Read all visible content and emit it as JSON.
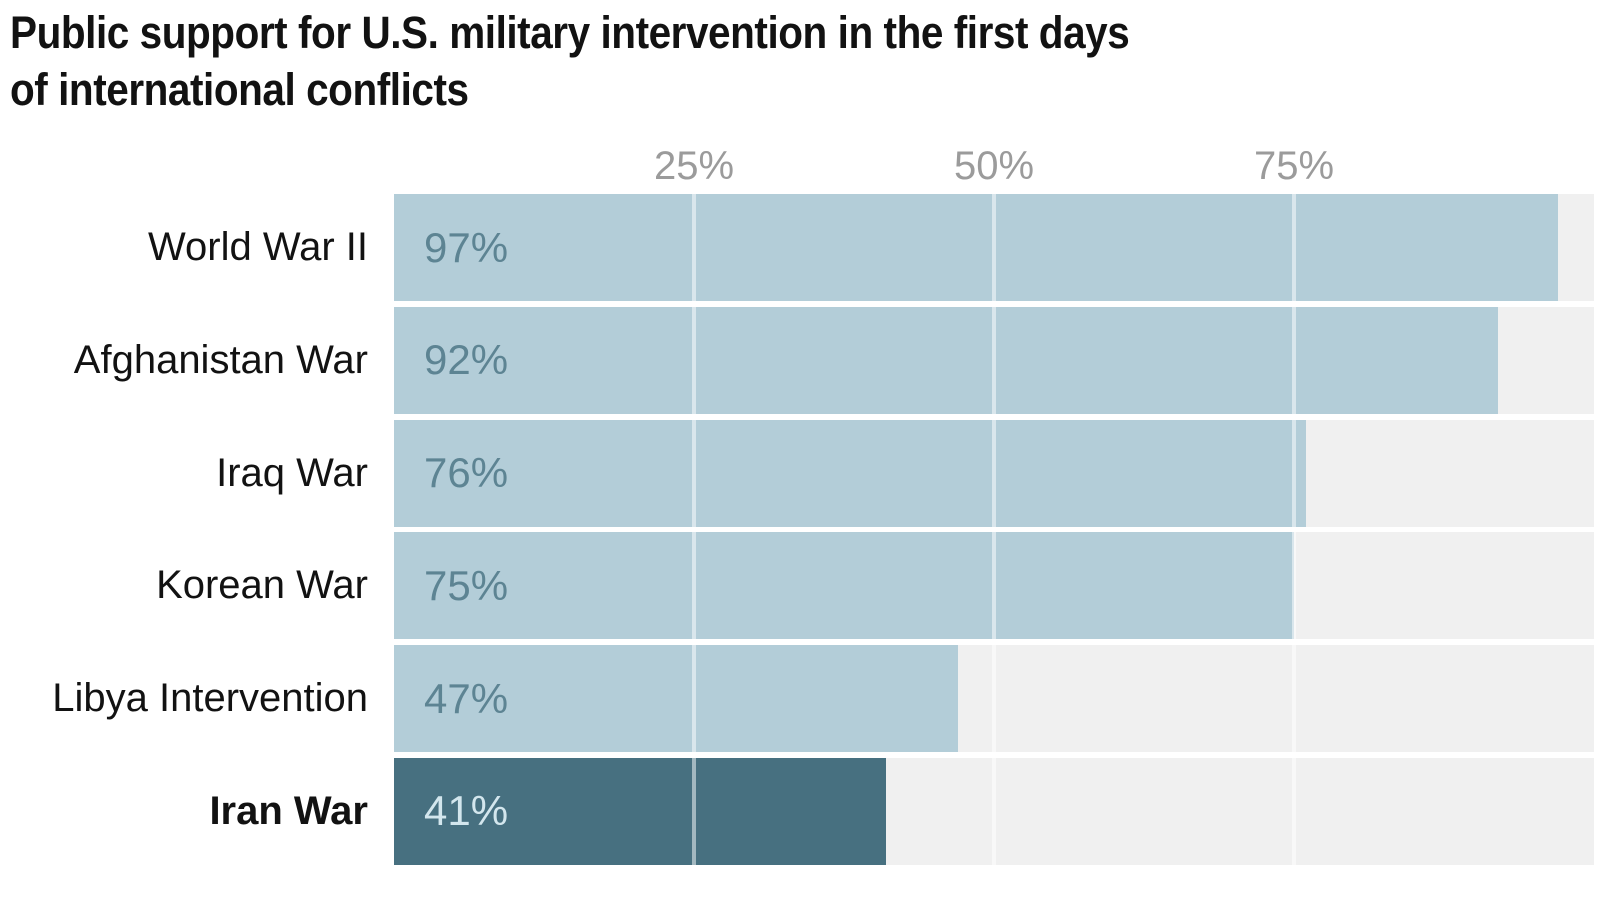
{
  "title": {
    "line1": "Public support for U.S. military intervention in the first days",
    "line2": "of international conflicts"
  },
  "axis": {
    "ticks": [
      {
        "label": "25%",
        "value": 25
      },
      {
        "label": "50%",
        "value": 50
      },
      {
        "label": "75%",
        "value": 75
      }
    ]
  },
  "chart_data": {
    "type": "bar",
    "orientation": "horizontal",
    "title": "Public support for U.S. military intervention in the first days of international conflicts",
    "categories": [
      "World War II",
      "Afghanistan War",
      "Iraq War",
      "Korean War",
      "Libya Intervention",
      "Iran War"
    ],
    "values": [
      97,
      92,
      76,
      75,
      47,
      41
    ],
    "value_labels": [
      "97%",
      "92%",
      "76%",
      "75%",
      "47%",
      "41%"
    ],
    "highlighted_category": "Iran War",
    "xlabel": "",
    "ylabel": "",
    "xlim": [
      0,
      100
    ],
    "grid": "vertical gridlines at 25, 50, 75",
    "legend": "none"
  },
  "colors": {
    "bar_light": "#b3cdd8",
    "bar_dark": "#477080",
    "value_text_light": "#5d8493",
    "value_text_dark": "#d3e6ed",
    "track_background": "#f0f0f0",
    "tick_text": "#9b9b9b",
    "title_text": "#121212",
    "gridline": "rgba(255,255,255,0.5)"
  }
}
